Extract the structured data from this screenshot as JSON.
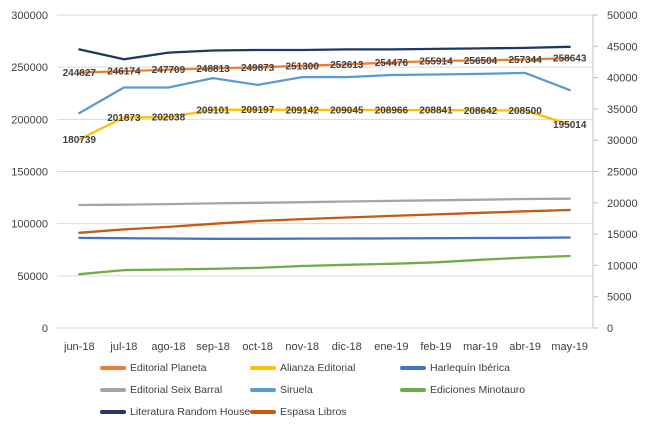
{
  "chart_data": {
    "type": "line",
    "title": "",
    "x_categories": [
      "jun-18",
      "jul-18",
      "ago-18",
      "sep-18",
      "oct-18",
      "nov-18",
      "dic-18",
      "ene-19",
      "feb-19",
      "mar-19",
      "abr-19",
      "may-19"
    ],
    "left_axis": {
      "min": 0,
      "max": 300000,
      "step": 50000,
      "tick_labels": [
        "0",
        "50000",
        "100000",
        "150000",
        "200000",
        "250000",
        "300000"
      ]
    },
    "right_axis": {
      "min": 0,
      "max": 50000,
      "step": 5000,
      "tick_labels": [
        "0",
        "5000",
        "10000",
        "15000",
        "20000",
        "25000",
        "30000",
        "35000",
        "40000",
        "45000",
        "50000"
      ]
    },
    "grid": "horizontal",
    "legend_position": "bottom",
    "colors": {
      "grid": "#D9D9D9",
      "right_axis_line": "#BFBFBF",
      "tick_text": "#404040",
      "data_label_text": "#3F3F3F",
      "background": "#FFFFFF"
    },
    "series": [
      {
        "name": "Editorial Planeta",
        "color": "#ED7D31",
        "axis": "left",
        "data_labels": true,
        "values": [
          244827,
          246174,
          247709,
          248813,
          249873,
          251300,
          252613,
          254476,
          255914,
          256504,
          257344,
          258643
        ]
      },
      {
        "name": "Alianza Editorial",
        "color": "#FFC000",
        "axis": "left",
        "data_labels": true,
        "values": [
          180739,
          201873,
          202038,
          209101,
          209197,
          209142,
          209045,
          208966,
          208841,
          208642,
          208500,
          195014
        ]
      },
      {
        "name": "Harlequín Ibérica",
        "color": "#4472C4",
        "axis": "right",
        "data_labels": false,
        "values": [
          14400,
          14350,
          14300,
          14250,
          14250,
          14280,
          14300,
          14320,
          14350,
          14380,
          14400,
          14450
        ]
      },
      {
        "name": "Editorial Seix Barral",
        "color": "#A5A5A5",
        "axis": "right",
        "data_labels": false,
        "values": [
          19650,
          19700,
          19800,
          19900,
          20000,
          20100,
          20200,
          20300,
          20400,
          20500,
          20600,
          20650
        ]
      },
      {
        "name": "Siruela",
        "color": "#5B9BD5",
        "axis": "left",
        "data_labels": false,
        "values": [
          206000,
          230500,
          230500,
          239500,
          233000,
          240500,
          240500,
          242500,
          243000,
          243500,
          244500,
          228000
        ]
      },
      {
        "name": "Ediciones Minotauro",
        "color": "#70AD47",
        "axis": "right",
        "data_labels": false,
        "values": [
          8600,
          9250,
          9350,
          9450,
          9600,
          9900,
          10100,
          10250,
          10500,
          10900,
          11250,
          11500
        ]
      },
      {
        "name": "Literatura Random House",
        "color": "#1F3864",
        "axis": "left",
        "data_labels": false,
        "values": [
          267000,
          257500,
          264000,
          266000,
          266500,
          266500,
          267000,
          267000,
          267500,
          268000,
          268500,
          269500
        ]
      },
      {
        "name": "Espasa Libros",
        "color": "#C55A11",
        "axis": "right",
        "data_labels": false,
        "values": [
          15200,
          15750,
          16150,
          16650,
          17100,
          17400,
          17650,
          17900,
          18150,
          18400,
          18650,
          18850
        ]
      }
    ],
    "legend_order": [
      "Editorial Planeta",
      "Alianza Editorial",
      "Harlequín Ibérica",
      "Editorial Seix Barral",
      "Siruela",
      "Ediciones Minotauro",
      "Literatura Random House",
      "Espasa Libros"
    ]
  }
}
